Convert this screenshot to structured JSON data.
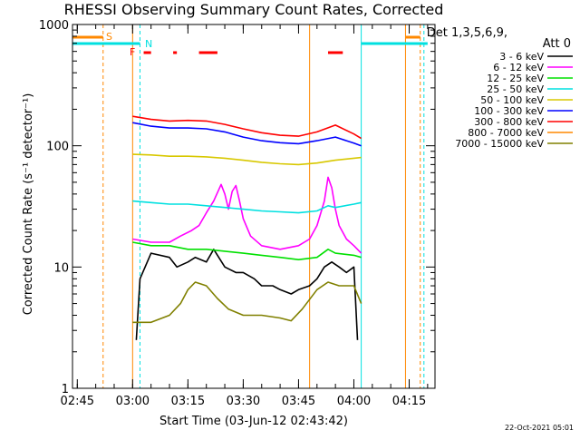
{
  "chart_data": {
    "type": "line",
    "title": "RHESSI Observing Summary Count Rates, Corrected",
    "xlabel": "Start Time (03-Jun-12 02:43:42)",
    "ylabel": "Corrected Count Rate (s⁻¹ detector⁻¹)",
    "y_scale": "log",
    "ylim": [
      1,
      1000
    ],
    "y_ticks": [
      1,
      10,
      100,
      1000
    ],
    "y_tick_labels": [
      "1",
      "10",
      "100",
      "1000"
    ],
    "xlim": [
      "02:43:42",
      "04:22:00"
    ],
    "x_tick_labels": [
      "02:45",
      "03:00",
      "03:15",
      "03:30",
      "03:45",
      "04:00",
      "04:15"
    ],
    "legend_header": [
      "Det 1,3,5,6,9,",
      "Att 0"
    ],
    "series": [
      {
        "name": "3 - 6 keV",
        "color": "#000000",
        "points": [
          [
            "03:01",
            2.5
          ],
          [
            "03:02",
            8
          ],
          [
            "03:05",
            13
          ],
          [
            "03:10",
            12
          ],
          [
            "03:12",
            10
          ],
          [
            "03:15",
            11
          ],
          [
            "03:17",
            12
          ],
          [
            "03:20",
            11
          ],
          [
            "03:22",
            14
          ],
          [
            "03:25",
            10
          ],
          [
            "03:28",
            9
          ],
          [
            "03:30",
            9
          ],
          [
            "03:33",
            8
          ],
          [
            "03:35",
            7
          ],
          [
            "03:38",
            7
          ],
          [
            "03:40",
            6.5
          ],
          [
            "03:43",
            6
          ],
          [
            "03:45",
            6.5
          ],
          [
            "03:48",
            7
          ],
          [
            "03:50",
            8
          ],
          [
            "03:52",
            10
          ],
          [
            "03:54",
            11
          ],
          [
            "03:56",
            10
          ],
          [
            "03:58",
            9
          ],
          [
            "04:00",
            10
          ],
          [
            "04:01",
            2.5
          ]
        ]
      },
      {
        "name": "6 - 12 keV",
        "color": "#ff00ff",
        "points": [
          [
            "03:00",
            17
          ],
          [
            "03:05",
            16
          ],
          [
            "03:10",
            16
          ],
          [
            "03:13",
            18
          ],
          [
            "03:16",
            20
          ],
          [
            "03:18",
            22
          ],
          [
            "03:20",
            28
          ],
          [
            "03:22",
            35
          ],
          [
            "03:24",
            48
          ],
          [
            "03:25",
            40
          ],
          [
            "03:26",
            30
          ],
          [
            "03:27",
            42
          ],
          [
            "03:28",
            47
          ],
          [
            "03:29",
            35
          ],
          [
            "03:30",
            25
          ],
          [
            "03:32",
            18
          ],
          [
            "03:35",
            15
          ],
          [
            "03:40",
            14
          ],
          [
            "03:45",
            15
          ],
          [
            "03:48",
            17
          ],
          [
            "03:50",
            22
          ],
          [
            "03:52",
            35
          ],
          [
            "03:53",
            55
          ],
          [
            "03:54",
            45
          ],
          [
            "03:55",
            30
          ],
          [
            "03:56",
            22
          ],
          [
            "03:58",
            17
          ],
          [
            "04:00",
            15
          ],
          [
            "04:02",
            13
          ]
        ]
      },
      {
        "name": "12 - 25 keV",
        "color": "#00e000",
        "points": [
          [
            "03:00",
            16
          ],
          [
            "03:05",
            15
          ],
          [
            "03:10",
            15
          ],
          [
            "03:15",
            14
          ],
          [
            "03:20",
            14
          ],
          [
            "03:25",
            13.5
          ],
          [
            "03:30",
            13
          ],
          [
            "03:35",
            12.5
          ],
          [
            "03:40",
            12
          ],
          [
            "03:45",
            11.5
          ],
          [
            "03:50",
            12
          ],
          [
            "03:53",
            14
          ],
          [
            "03:55",
            13
          ],
          [
            "04:00",
            12.5
          ],
          [
            "04:02",
            12
          ]
        ]
      },
      {
        "name": "25 - 50 keV",
        "color": "#00e0e0",
        "points": [
          [
            "03:00",
            35
          ],
          [
            "03:05",
            34
          ],
          [
            "03:10",
            33
          ],
          [
            "03:15",
            33
          ],
          [
            "03:20",
            32
          ],
          [
            "03:25",
            31
          ],
          [
            "03:30",
            30
          ],
          [
            "03:35",
            29
          ],
          [
            "03:40",
            28.5
          ],
          [
            "03:45",
            28
          ],
          [
            "03:50",
            29
          ],
          [
            "03:53",
            32
          ],
          [
            "03:55",
            31
          ],
          [
            "04:00",
            33
          ],
          [
            "04:02",
            34
          ]
        ]
      },
      {
        "name": "50 - 100 keV",
        "color": "#d8c800",
        "points": [
          [
            "03:00",
            85
          ],
          [
            "03:05",
            84
          ],
          [
            "03:10",
            82
          ],
          [
            "03:15",
            82
          ],
          [
            "03:20",
            81
          ],
          [
            "03:25",
            79
          ],
          [
            "03:30",
            76
          ],
          [
            "03:35",
            73
          ],
          [
            "03:40",
            71
          ],
          [
            "03:45",
            70
          ],
          [
            "03:50",
            72
          ],
          [
            "03:55",
            76
          ],
          [
            "04:00",
            79
          ],
          [
            "04:02",
            80
          ]
        ]
      },
      {
        "name": "100 - 300 keV",
        "color": "#0000ff",
        "points": [
          [
            "03:00",
            155
          ],
          [
            "03:05",
            145
          ],
          [
            "03:10",
            140
          ],
          [
            "03:15",
            140
          ],
          [
            "03:20",
            138
          ],
          [
            "03:25",
            130
          ],
          [
            "03:30",
            118
          ],
          [
            "03:35",
            110
          ],
          [
            "03:40",
            106
          ],
          [
            "03:45",
            104
          ],
          [
            "03:50",
            110
          ],
          [
            "03:55",
            118
          ],
          [
            "04:00",
            105
          ],
          [
            "04:02",
            100
          ]
        ]
      },
      {
        "name": "300 - 800 keV",
        "color": "#ff0000",
        "points": [
          [
            "03:00",
            175
          ],
          [
            "03:05",
            165
          ],
          [
            "03:10",
            160
          ],
          [
            "03:15",
            162
          ],
          [
            "03:20",
            160
          ],
          [
            "03:25",
            150
          ],
          [
            "03:30",
            138
          ],
          [
            "03:35",
            128
          ],
          [
            "03:40",
            122
          ],
          [
            "03:45",
            120
          ],
          [
            "03:50",
            130
          ],
          [
            "03:55",
            148
          ],
          [
            "04:00",
            125
          ],
          [
            "04:02",
            115
          ]
        ]
      },
      {
        "name": "800 - 7000 keV",
        "color": "#ff8800",
        "points": []
      },
      {
        "name": "7000 - 15000 keV",
        "color": "#808000",
        "points": [
          [
            "03:00",
            3.5
          ],
          [
            "03:05",
            3.5
          ],
          [
            "03:10",
            4
          ],
          [
            "03:13",
            5
          ],
          [
            "03:15",
            6.5
          ],
          [
            "03:17",
            7.5
          ],
          [
            "03:20",
            7
          ],
          [
            "03:23",
            5.5
          ],
          [
            "03:26",
            4.5
          ],
          [
            "03:30",
            4
          ],
          [
            "03:35",
            4
          ],
          [
            "03:40",
            3.8
          ],
          [
            "03:43",
            3.6
          ],
          [
            "03:46",
            4.5
          ],
          [
            "03:50",
            6.5
          ],
          [
            "03:53",
            7.5
          ],
          [
            "03:56",
            7
          ],
          [
            "04:00",
            7
          ],
          [
            "04:02",
            5
          ]
        ]
      }
    ],
    "markers": [
      {
        "label": "S",
        "color": "#ff8800"
      },
      {
        "label": "N",
        "color": "#00e0e0"
      },
      {
        "label": "F",
        "color": "#ff0000"
      }
    ],
    "flag_bars": {
      "saa_orange": [
        [
          "02:43:42",
          "02:52"
        ],
        [
          "04:14",
          "04:18"
        ]
      ],
      "night_cyan": [
        [
          "02:43:42",
          "03:02"
        ],
        [
          "04:02",
          "04:20"
        ]
      ],
      "flare_red": [
        [
          "03:03",
          "03:05"
        ],
        [
          "03:11",
          "03:12"
        ],
        [
          "03:18",
          "03:23"
        ],
        [
          "03:53",
          "03:57"
        ]
      ]
    },
    "vertical_lines": {
      "orange_dashed": [
        "02:52",
        "04:18"
      ],
      "cyan_dashed": [
        "03:02",
        "04:19"
      ],
      "orange_solid": [
        "02:43:42",
        "03:00",
        "03:48",
        "04:14"
      ],
      "cyan_solid": [
        "02:43:42",
        "04:02"
      ]
    },
    "grid": false,
    "legend_placement": "right"
  },
  "footer_timestamp": "22-Oct-2021 05:01"
}
